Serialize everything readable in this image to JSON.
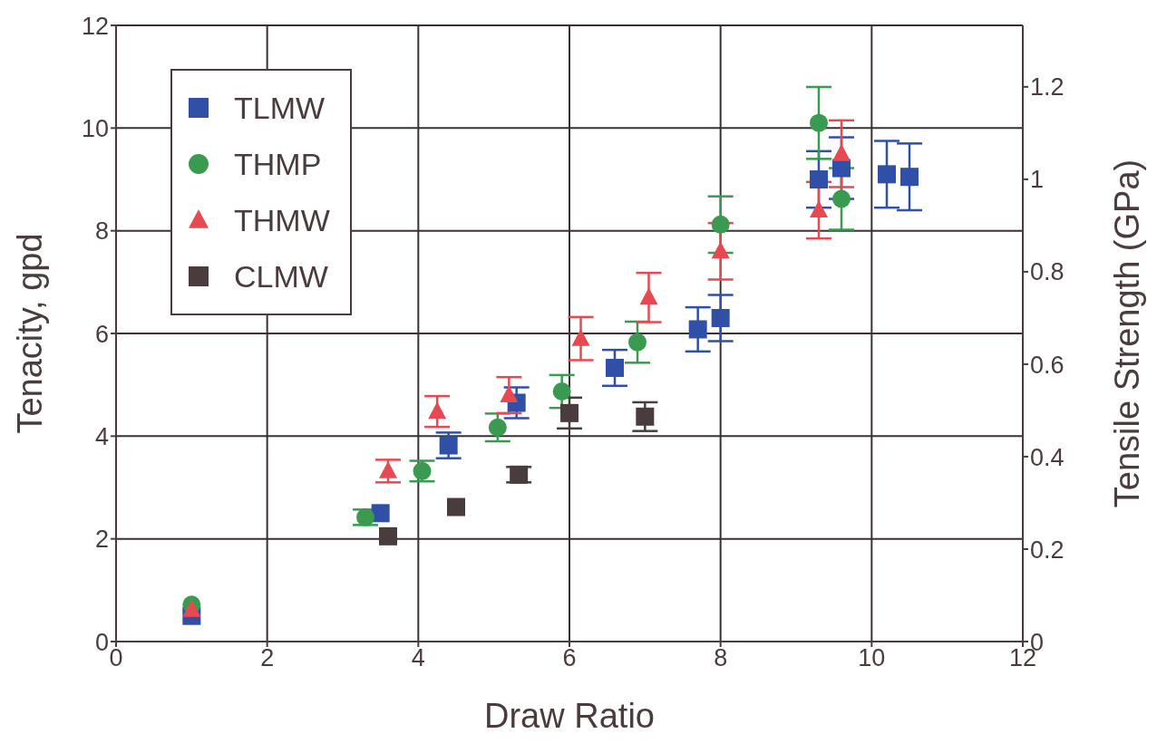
{
  "chart_data": {
    "type": "scatter",
    "xlabel": "Draw Ratio",
    "ylabel": "Tenacity, gpd",
    "y2label": "Tensile Strength (GPa)",
    "xlim": [
      0,
      12
    ],
    "xticks": [
      0,
      2,
      4,
      6,
      8,
      10,
      12
    ],
    "ylim": [
      0,
      12
    ],
    "yticks": [
      0,
      2,
      4,
      6,
      8,
      10,
      12
    ],
    "y2lim": [
      0,
      1.333
    ],
    "y2ticks": [
      0,
      0.2,
      0.4,
      0.6,
      0.8,
      1,
      1.2
    ],
    "grid": true,
    "legend": "top left",
    "series": [
      {
        "name": "TLMW",
        "color": "#3050a8",
        "marker": "square",
        "x": [
          1.0,
          3.5,
          4.4,
          5.3,
          6.6,
          7.7,
          8.0,
          9.3,
          9.6,
          10.2,
          10.5
        ],
        "values": [
          0.5,
          2.5,
          3.82,
          4.65,
          5.33,
          6.08,
          6.3,
          9.0,
          9.22,
          9.1,
          9.05
        ],
        "errors": [
          null,
          null,
          0.25,
          0.3,
          0.35,
          0.43,
          0.45,
          0.55,
          0.6,
          0.65,
          0.65
        ]
      },
      {
        "name": "THMP",
        "color": "#3a9a50",
        "marker": "circle",
        "x": [
          1.0,
          3.3,
          4.05,
          5.05,
          5.9,
          6.9,
          8.0,
          9.3,
          9.6
        ],
        "values": [
          0.72,
          2.42,
          3.32,
          4.17,
          4.87,
          5.83,
          8.12,
          10.1,
          8.62
        ],
        "errors": [
          null,
          0.15,
          0.2,
          0.27,
          0.32,
          0.4,
          0.55,
          0.7,
          0.6
        ]
      },
      {
        "name": "THMW",
        "color": "#e84850",
        "marker": "triangle",
        "x": [
          1.0,
          3.6,
          4.25,
          5.2,
          6.15,
          7.05,
          8.0,
          9.3,
          9.6
        ],
        "values": [
          0.62,
          3.32,
          4.48,
          4.8,
          5.9,
          6.7,
          7.6,
          8.4,
          9.5
        ],
        "errors": [
          null,
          0.22,
          0.3,
          0.35,
          0.42,
          0.48,
          0.55,
          0.55,
          0.65
        ]
      },
      {
        "name": "CLMW",
        "color": "#4a3c3c",
        "marker": "square",
        "x": [
          3.6,
          4.5,
          5.33,
          6.0,
          7.0
        ],
        "values": [
          2.05,
          2.62,
          3.25,
          4.45,
          4.38
        ],
        "errors": [
          null,
          null,
          0.15,
          0.3,
          0.28
        ]
      }
    ]
  }
}
